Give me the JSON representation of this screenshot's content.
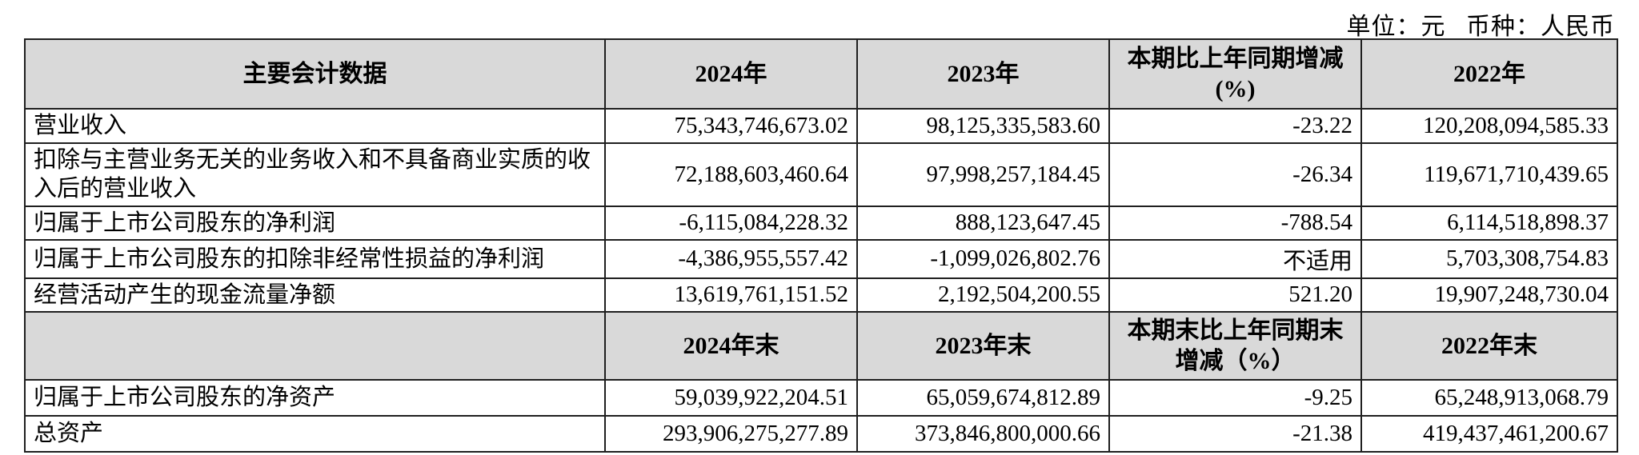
{
  "unit_note": "单位：元   币种：人民币",
  "table": {
    "header_top": [
      "主要会计数据",
      "2024年",
      "2023年",
      "本期比上年同期增减\n(%)",
      "2022年"
    ],
    "rows_top": [
      {
        "label": "营业收入",
        "values": [
          "75,343,746,673.02",
          "98,125,335,583.60",
          "-23.22",
          "120,208,094,585.33"
        ]
      },
      {
        "label": "扣除与主营业务无关的业务收入和不具备商业实质的收入后的营业收入",
        "values": [
          "72,188,603,460.64",
          "97,998,257,184.45",
          "-26.34",
          "119,671,710,439.65"
        ]
      },
      {
        "label": "归属于上市公司股东的净利润",
        "values": [
          "-6,115,084,228.32",
          "888,123,647.45",
          "-788.54",
          "6,114,518,898.37"
        ]
      },
      {
        "label": "归属于上市公司股东的扣除非经常性损益的净利润",
        "values": [
          "-4,386,955,557.42",
          "-1,099,026,802.76",
          "不适用",
          "5,703,308,754.83"
        ]
      },
      {
        "label": "经营活动产生的现金流量净额",
        "values": [
          "13,619,761,151.52",
          "2,192,504,200.55",
          "521.20",
          "19,907,248,730.04"
        ]
      }
    ],
    "header_mid": [
      "",
      "2024年末",
      "2023年末",
      "本期末比上年同期末\n增减（%）",
      "2022年末"
    ],
    "rows_bottom": [
      {
        "label": "归属于上市公司股东的净资产",
        "values": [
          "59,039,922,204.51",
          "65,059,674,812.89",
          "-9.25",
          "65,248,913,068.79"
        ]
      },
      {
        "label": "总资产",
        "values": [
          "293,906,275,277.89",
          "373,846,800,000.66",
          "-21.38",
          "419,437,461,200.67"
        ]
      }
    ],
    "colors": {
      "header_bg": "#d9d9d9",
      "border": "#1f1f1f"
    }
  }
}
